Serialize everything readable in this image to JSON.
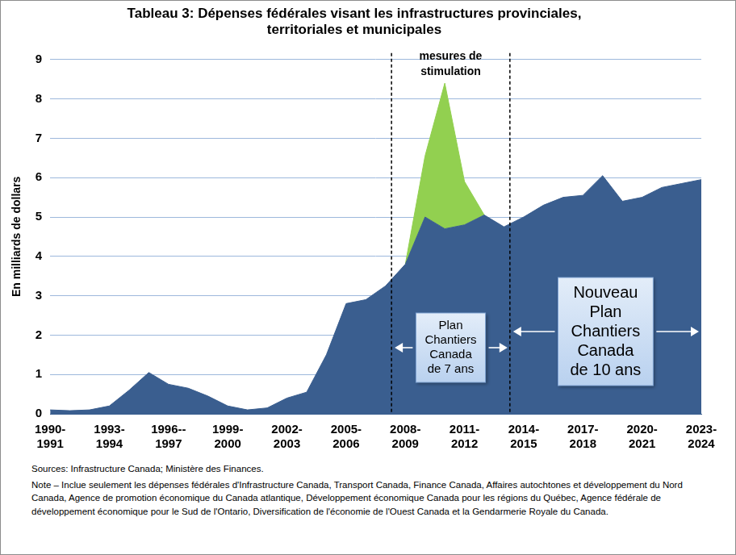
{
  "chart_data": {
    "type": "area",
    "title": "Tableau 3: Dépenses fédérales visant les infrastructures provinciales,\nterritoriales et municipales",
    "y_label": "En milliards de dollars",
    "categories": [
      "1990-\n1991",
      null,
      null,
      "1993-\n1994",
      null,
      null,
      "1996--\n1997",
      null,
      null,
      "1999-\n2000",
      null,
      null,
      "2002-\n2003",
      null,
      null,
      "2005-\n2006",
      null,
      null,
      "2008-\n2009",
      null,
      null,
      "2011-\n2012",
      null,
      null,
      "2014-\n2015",
      null,
      null,
      "2017-\n2018",
      null,
      null,
      "2020-\n2021",
      null,
      null,
      "2023-\n2024"
    ],
    "series": [
      {
        "color": "#3a5e8f",
        "values": [
          0.1,
          0.08,
          0.1,
          0.2,
          0.6,
          1.05,
          0.75,
          0.65,
          0.45,
          0.2,
          0.1,
          0.15,
          0.4,
          0.55,
          1.5,
          2.8,
          2.9,
          3.25,
          3.8,
          5.0,
          4.7,
          4.8,
          5.05,
          4.75,
          5.0,
          5.3,
          5.5,
          5.55,
          6.05,
          5.4,
          5.5,
          5.75,
          5.85,
          5.95
        ]
      },
      {
        "name": "mesures de\nstimulation",
        "color": "#92d050",
        "values": [
          null,
          null,
          null,
          null,
          null,
          null,
          null,
          null,
          null,
          null,
          null,
          null,
          null,
          null,
          null,
          null,
          null,
          null,
          0,
          1.55,
          3.7,
          1.1,
          0,
          null,
          null,
          null,
          null,
          null,
          null,
          null,
          null,
          null,
          null,
          null
        ]
      }
    ],
    "stacked": true,
    "ylim": [
      0,
      9
    ],
    "yticks": [
      0,
      1,
      2,
      3,
      4,
      5,
      6,
      7,
      8,
      9
    ],
    "grid": true,
    "dividers": [
      17.3,
      23.3
    ],
    "annotations": [
      {
        "text": "Plan\nChantiers\nCanada\nde 7 ans",
        "from": 17.3,
        "to": 23.3
      },
      {
        "text": "Nouveau\nPlan\nChantiers\nCanada\nde 10 ans",
        "from": 23.3,
        "to": 33
      }
    ],
    "footnotes": [
      "Sources: Infrastructure Canada; Ministère des Finances.",
      "Note – Inclue seulement les dépenses fédérales d'Infrastructure Canada, Transport Canada, Finance Canada, Affaires autochtones et développement du Nord Canada, Agence de promotion économique du Canada atlantique, Développement économique Canada pour les régions du Québec, Agence fédérale de développement économique pour le Sud de l'Ontario, Diversification de l'économie de l'Ouest Canada et la Gendarmerie Royale du Canada."
    ]
  }
}
